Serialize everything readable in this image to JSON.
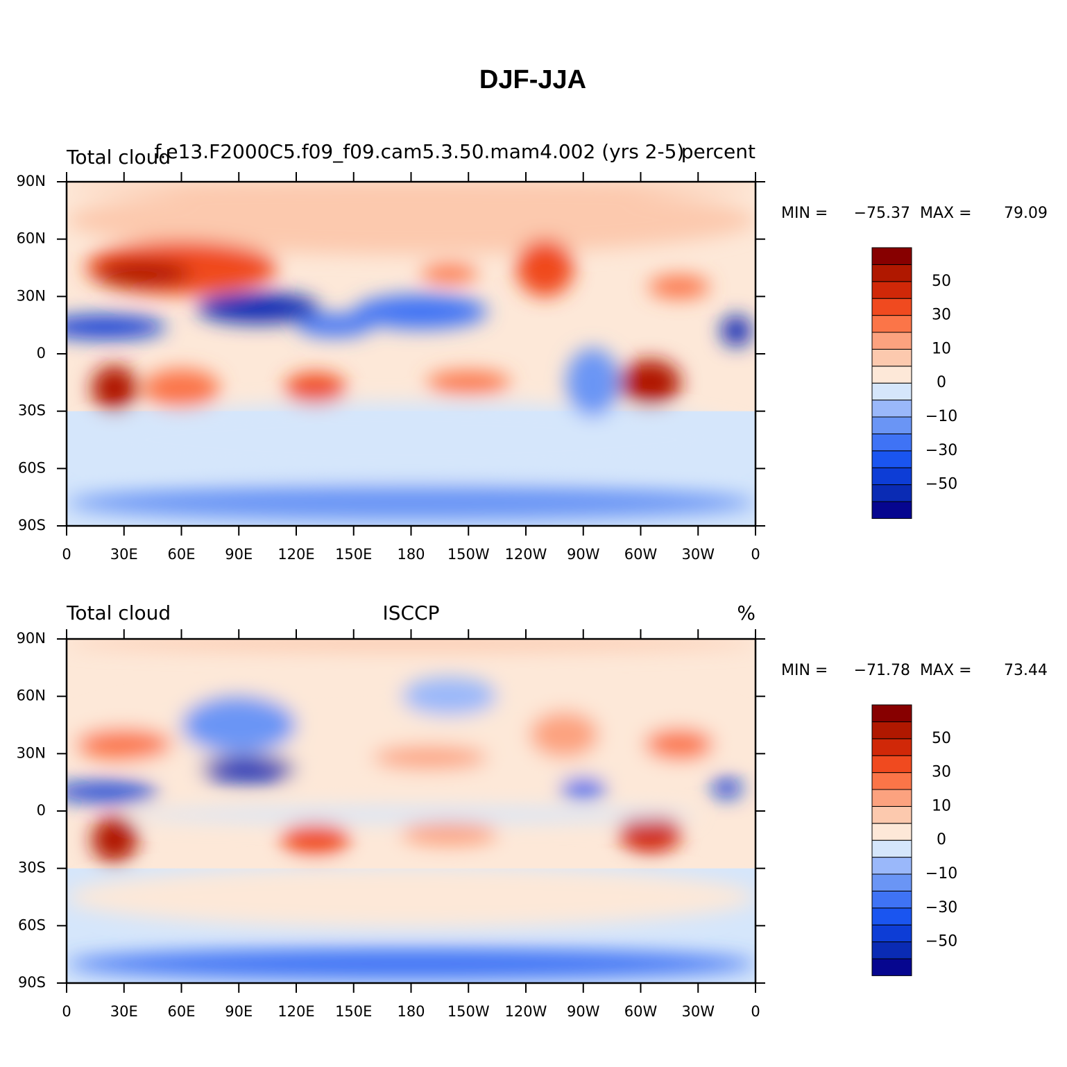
{
  "title": "DJF-JJA",
  "xlim": [
    0,
    360
  ],
  "ylim": [
    -90,
    90
  ],
  "xticks": [
    {
      "value": 0,
      "label": "0"
    },
    {
      "value": 30,
      "label": "30E"
    },
    {
      "value": 60,
      "label": "60E"
    },
    {
      "value": 90,
      "label": "90E"
    },
    {
      "value": 120,
      "label": "120E"
    },
    {
      "value": 150,
      "label": "150E"
    },
    180,
    {
      "value": 210,
      "label": "150W"
    },
    {
      "value": 240,
      "label": "120W"
    },
    {
      "value": 270,
      "label": "90W"
    },
    {
      "value": 300,
      "label": "60W"
    },
    {
      "value": 330,
      "label": "30W"
    },
    {
      "value": 360,
      "label": "0"
    }
  ],
  "yticks": [
    {
      "value": -90,
      "label": "90S"
    },
    {
      "value": -60,
      "label": "60S"
    },
    {
      "value": -30,
      "label": "30S"
    },
    0,
    {
      "value": 30,
      "label": "30N"
    },
    {
      "value": 60,
      "label": "60N"
    },
    {
      "value": 90,
      "label": "90N"
    }
  ],
  "colorbar": {
    "levels": [
      -60,
      -50,
      -40,
      -30,
      -20,
      -10,
      -5,
      0,
      5,
      10,
      20,
      30,
      40,
      50,
      60
    ],
    "colors": [
      "#06068f",
      "#0a2bb4",
      "#0d3dd6",
      "#1a55f0",
      "#3f73f5",
      "#6a95f5",
      "#9ab8fa",
      "#d5e6fb",
      "#fde8d8",
      "#fcc9ae",
      "#fca27f",
      "#fb7548",
      "#f04a1f",
      "#d02808",
      "#b01800",
      "#870000"
    ],
    "ticks": [
      50,
      30,
      10,
      0,
      {
        "value": -10,
        "label": "−10"
      },
      {
        "value": -30,
        "label": "−30"
      },
      {
        "value": -50,
        "label": "−50"
      }
    ]
  },
  "panels": [
    {
      "left_title": "Total cloud",
      "center_title": "f.e13.F2000C5.f09_f09.cam5.3.50.mam4.002 (yrs 2-5)",
      "right_title": "percent",
      "min_label": "MIN =",
      "min": {
        "value": -75.37,
        "label": "−75.37"
      },
      "max_label": "MAX =",
      "max": 79.09
    },
    {
      "left_title": "Total cloud",
      "center_title": "ISCCP",
      "right_title": "%",
      "min_label": "MIN =",
      "min": {
        "value": -71.78,
        "label": "−71.78"
      },
      "max_label": "MAX =",
      "max": 73.44
    }
  ]
}
